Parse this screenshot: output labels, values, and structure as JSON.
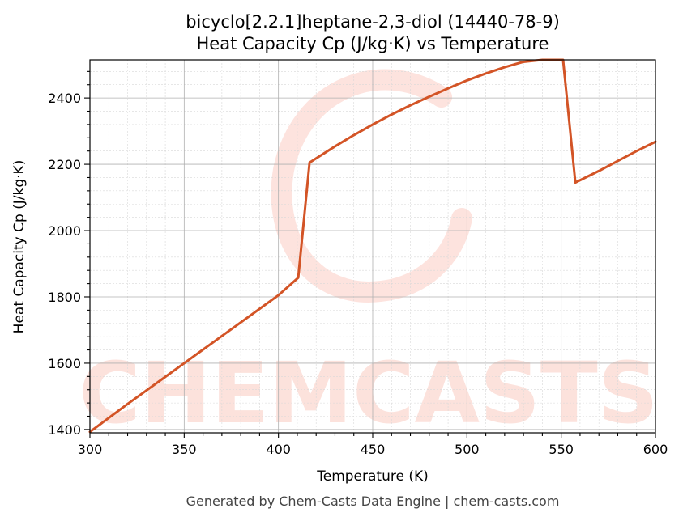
{
  "chart_data": {
    "type": "line",
    "title_line1": "bicyclo[2.2.1]heptane-2,3-diol (14440-78-9)",
    "title_line2": "Heat Capacity Cp (J/kg·K) vs Temperature",
    "xlabel": "Temperature (K)",
    "ylabel": "Heat Capacity Cp (J/kg·K)",
    "xlim": [
      300,
      600
    ],
    "ylim": [
      1390,
      2515
    ],
    "x_ticks": [
      300,
      350,
      400,
      450,
      500,
      550,
      600
    ],
    "y_ticks": [
      1400,
      1600,
      1800,
      2000,
      2200,
      2400
    ],
    "grid": true,
    "color": "#d35426",
    "series": [
      {
        "x": [
          300,
          310,
          320,
          330,
          340,
          350,
          360,
          370,
          380,
          390,
          400,
          410.5,
          416.5,
          420,
          430,
          440,
          450,
          460,
          470,
          480,
          490,
          500,
          510,
          520,
          530,
          540,
          551,
          557.5,
          570,
          580,
          590,
          600
        ],
        "values": [
          1393,
          1435,
          1477,
          1518,
          1559,
          1600,
          1641,
          1682,
          1723,
          1764,
          1805,
          1858,
          2205,
          2218,
          2254,
          2288,
          2320,
          2350,
          2378,
          2404,
          2429,
          2453,
          2474,
          2493,
          2509,
          2522,
          2516,
          2145,
          2180,
          2210,
          2240,
          2268
        ]
      }
    ]
  },
  "watermark": "CHEMCASTS",
  "footer": "Generated by Chem-Casts Data Engine | chem-casts.com"
}
